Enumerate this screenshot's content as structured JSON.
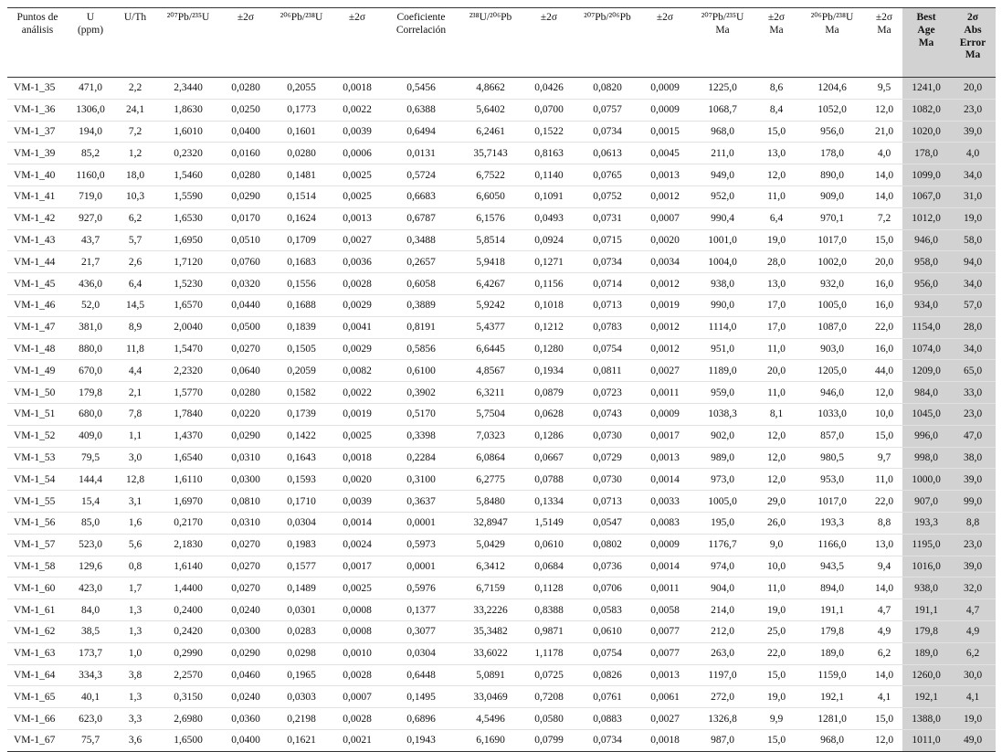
{
  "table": {
    "header": [
      "Puntos de\nanálisis",
      "U\n(ppm)",
      "U/Th",
      "²⁰⁷Pb/²³⁵U",
      "±2σ",
      "²⁰⁶Pb/²³⁸U",
      "±2σ",
      "Coeficiente\nCorrelación",
      "²³⁸U/²⁰⁶Pb",
      "±2σ",
      "²⁰⁷Pb/²⁰⁶Pb",
      "±2σ",
      "²⁰⁷Pb/²³⁵U\nMa",
      "±2σ\nMa",
      "²⁰⁶Pb/²³⁸U\nMa",
      "±2σ\nMa",
      "Best\nAge\nMa",
      "2σ\nAbs\nError\nMa"
    ],
    "rows": [
      [
        "VM-1_35",
        "471,0",
        "2,2",
        "2,3440",
        "0,0280",
        "0,2055",
        "0,0018",
        "0,5456",
        "4,8662",
        "0,0426",
        "0,0820",
        "0,0009",
        "1225,0",
        "8,6",
        "1204,6",
        "9,5",
        "1241,0",
        "20,0"
      ],
      [
        "VM-1_36",
        "1306,0",
        "24,1",
        "1,8630",
        "0,0250",
        "0,1773",
        "0,0022",
        "0,6388",
        "5,6402",
        "0,0700",
        "0,0757",
        "0,0009",
        "1068,7",
        "8,4",
        "1052,0",
        "12,0",
        "1082,0",
        "23,0"
      ],
      [
        "VM-1_37",
        "194,0",
        "7,2",
        "1,6010",
        "0,0400",
        "0,1601",
        "0,0039",
        "0,6494",
        "6,2461",
        "0,1522",
        "0,0734",
        "0,0015",
        "968,0",
        "15,0",
        "956,0",
        "21,0",
        "1020,0",
        "39,0"
      ],
      [
        "VM-1_39",
        "85,2",
        "1,2",
        "0,2320",
        "0,0160",
        "0,0280",
        "0,0006",
        "0,0131",
        "35,7143",
        "0,8163",
        "0,0613",
        "0,0045",
        "211,0",
        "13,0",
        "178,0",
        "4,0",
        "178,0",
        "4,0"
      ],
      [
        "VM-1_40",
        "1160,0",
        "18,0",
        "1,5460",
        "0,0280",
        "0,1481",
        "0,0025",
        "0,5724",
        "6,7522",
        "0,1140",
        "0,0765",
        "0,0013",
        "949,0",
        "12,0",
        "890,0",
        "14,0",
        "1099,0",
        "34,0"
      ],
      [
        "VM-1_41",
        "719,0",
        "10,3",
        "1,5590",
        "0,0290",
        "0,1514",
        "0,0025",
        "0,6683",
        "6,6050",
        "0,1091",
        "0,0752",
        "0,0012",
        "952,0",
        "11,0",
        "909,0",
        "14,0",
        "1067,0",
        "31,0"
      ],
      [
        "VM-1_42",
        "927,0",
        "6,2",
        "1,6530",
        "0,0170",
        "0,1624",
        "0,0013",
        "0,6787",
        "6,1576",
        "0,0493",
        "0,0731",
        "0,0007",
        "990,4",
        "6,4",
        "970,1",
        "7,2",
        "1012,0",
        "19,0"
      ],
      [
        "VM-1_43",
        "43,7",
        "5,7",
        "1,6950",
        "0,0510",
        "0,1709",
        "0,0027",
        "0,3488",
        "5,8514",
        "0,0924",
        "0,0715",
        "0,0020",
        "1001,0",
        "19,0",
        "1017,0",
        "15,0",
        "946,0",
        "58,0"
      ],
      [
        "VM-1_44",
        "21,7",
        "2,6",
        "1,7120",
        "0,0760",
        "0,1683",
        "0,0036",
        "0,2657",
        "5,9418",
        "0,1271",
        "0,0734",
        "0,0034",
        "1004,0",
        "28,0",
        "1002,0",
        "20,0",
        "958,0",
        "94,0"
      ],
      [
        "VM-1_45",
        "436,0",
        "6,4",
        "1,5230",
        "0,0320",
        "0,1556",
        "0,0028",
        "0,6058",
        "6,4267",
        "0,1156",
        "0,0714",
        "0,0012",
        "938,0",
        "13,0",
        "932,0",
        "16,0",
        "956,0",
        "34,0"
      ],
      [
        "VM-1_46",
        "52,0",
        "14,5",
        "1,6570",
        "0,0440",
        "0,1688",
        "0,0029",
        "0,3889",
        "5,9242",
        "0,1018",
        "0,0713",
        "0,0019",
        "990,0",
        "17,0",
        "1005,0",
        "16,0",
        "934,0",
        "57,0"
      ],
      [
        "VM-1_47",
        "381,0",
        "8,9",
        "2,0040",
        "0,0500",
        "0,1839",
        "0,0041",
        "0,8191",
        "5,4377",
        "0,1212",
        "0,0783",
        "0,0012",
        "1114,0",
        "17,0",
        "1087,0",
        "22,0",
        "1154,0",
        "28,0"
      ],
      [
        "VM-1_48",
        "880,0",
        "11,8",
        "1,5470",
        "0,0270",
        "0,1505",
        "0,0029",
        "0,5856",
        "6,6445",
        "0,1280",
        "0,0754",
        "0,0012",
        "951,0",
        "11,0",
        "903,0",
        "16,0",
        "1074,0",
        "34,0"
      ],
      [
        "VM-1_49",
        "670,0",
        "4,4",
        "2,2320",
        "0,0640",
        "0,2059",
        "0,0082",
        "0,6100",
        "4,8567",
        "0,1934",
        "0,0811",
        "0,0027",
        "1189,0",
        "20,0",
        "1205,0",
        "44,0",
        "1209,0",
        "65,0"
      ],
      [
        "VM-1_50",
        "179,8",
        "2,1",
        "1,5770",
        "0,0280",
        "0,1582",
        "0,0022",
        "0,3902",
        "6,3211",
        "0,0879",
        "0,0723",
        "0,0011",
        "959,0",
        "11,0",
        "946,0",
        "12,0",
        "984,0",
        "33,0"
      ],
      [
        "VM-1_51",
        "680,0",
        "7,8",
        "1,7840",
        "0,0220",
        "0,1739",
        "0,0019",
        "0,5170",
        "5,7504",
        "0,0628",
        "0,0743",
        "0,0009",
        "1038,3",
        "8,1",
        "1033,0",
        "10,0",
        "1045,0",
        "23,0"
      ],
      [
        "VM-1_52",
        "409,0",
        "1,1",
        "1,4370",
        "0,0290",
        "0,1422",
        "0,0025",
        "0,3398",
        "7,0323",
        "0,1286",
        "0,0730",
        "0,0017",
        "902,0",
        "12,0",
        "857,0",
        "15,0",
        "996,0",
        "47,0"
      ],
      [
        "VM-1_53",
        "79,5",
        "3,0",
        "1,6540",
        "0,0310",
        "0,1643",
        "0,0018",
        "0,2284",
        "6,0864",
        "0,0667",
        "0,0729",
        "0,0013",
        "989,0",
        "12,0",
        "980,5",
        "9,7",
        "998,0",
        "38,0"
      ],
      [
        "VM-1_54",
        "144,4",
        "12,8",
        "1,6110",
        "0,0300",
        "0,1593",
        "0,0020",
        "0,3100",
        "6,2775",
        "0,0788",
        "0,0730",
        "0,0014",
        "973,0",
        "12,0",
        "953,0",
        "11,0",
        "1000,0",
        "39,0"
      ],
      [
        "VM-1_55",
        "15,4",
        "3,1",
        "1,6970",
        "0,0810",
        "0,1710",
        "0,0039",
        "0,3637",
        "5,8480",
        "0,1334",
        "0,0713",
        "0,0033",
        "1005,0",
        "29,0",
        "1017,0",
        "22,0",
        "907,0",
        "99,0"
      ],
      [
        "VM-1_56",
        "85,0",
        "1,6",
        "0,2170",
        "0,0310",
        "0,0304",
        "0,0014",
        "0,0001",
        "32,8947",
        "1,5149",
        "0,0547",
        "0,0083",
        "195,0",
        "26,0",
        "193,3",
        "8,8",
        "193,3",
        "8,8"
      ],
      [
        "VM-1_57",
        "523,0",
        "5,6",
        "2,1830",
        "0,0270",
        "0,1983",
        "0,0024",
        "0,5973",
        "5,0429",
        "0,0610",
        "0,0802",
        "0,0009",
        "1176,7",
        "9,0",
        "1166,0",
        "13,0",
        "1195,0",
        "23,0"
      ],
      [
        "VM-1_58",
        "129,6",
        "0,8",
        "1,6140",
        "0,0270",
        "0,1577",
        "0,0017",
        "0,0001",
        "6,3412",
        "0,0684",
        "0,0736",
        "0,0014",
        "974,0",
        "10,0",
        "943,5",
        "9,4",
        "1016,0",
        "39,0"
      ],
      [
        "VM-1_60",
        "423,0",
        "1,7",
        "1,4400",
        "0,0270",
        "0,1489",
        "0,0025",
        "0,5976",
        "6,7159",
        "0,1128",
        "0,0706",
        "0,0011",
        "904,0",
        "11,0",
        "894,0",
        "14,0",
        "938,0",
        "32,0"
      ],
      [
        "VM-1_61",
        "84,0",
        "1,3",
        "0,2400",
        "0,0240",
        "0,0301",
        "0,0008",
        "0,1377",
        "33,2226",
        "0,8388",
        "0,0583",
        "0,0058",
        "214,0",
        "19,0",
        "191,1",
        "4,7",
        "191,1",
        "4,7"
      ],
      [
        "VM-1_62",
        "38,5",
        "1,3",
        "0,2420",
        "0,0300",
        "0,0283",
        "0,0008",
        "0,3077",
        "35,3482",
        "0,9871",
        "0,0610",
        "0,0077",
        "212,0",
        "25,0",
        "179,8",
        "4,9",
        "179,8",
        "4,9"
      ],
      [
        "VM-1_63",
        "173,7",
        "1,0",
        "0,2990",
        "0,0290",
        "0,0298",
        "0,0010",
        "0,0304",
        "33,6022",
        "1,1178",
        "0,0754",
        "0,0077",
        "263,0",
        "22,0",
        "189,0",
        "6,2",
        "189,0",
        "6,2"
      ],
      [
        "VM-1_64",
        "334,3",
        "3,8",
        "2,2570",
        "0,0460",
        "0,1965",
        "0,0028",
        "0,6448",
        "5,0891",
        "0,0725",
        "0,0826",
        "0,0013",
        "1197,0",
        "15,0",
        "1159,0",
        "14,0",
        "1260,0",
        "30,0"
      ],
      [
        "VM-1_65",
        "40,1",
        "1,3",
        "0,3150",
        "0,0240",
        "0,0303",
        "0,0007",
        "0,1495",
        "33,0469",
        "0,7208",
        "0,0761",
        "0,0061",
        "272,0",
        "19,0",
        "192,1",
        "4,1",
        "192,1",
        "4,1"
      ],
      [
        "VM-1_66",
        "623,0",
        "3,3",
        "2,6980",
        "0,0360",
        "0,2198",
        "0,0028",
        "0,6896",
        "4,5496",
        "0,0580",
        "0,0883",
        "0,0027",
        "1326,8",
        "9,9",
        "1281,0",
        "15,0",
        "1388,0",
        "19,0"
      ],
      [
        "VM-1_67",
        "75,7",
        "3,6",
        "1,6500",
        "0,0400",
        "0,1621",
        "0,0021",
        "0,1943",
        "6,1690",
        "0,0799",
        "0,0734",
        "0,0018",
        "987,0",
        "15,0",
        "968,0",
        "12,0",
        "1011,0",
        "49,0"
      ]
    ]
  }
}
